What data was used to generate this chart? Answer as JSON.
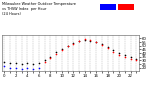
{
  "title": "Milwaukee Weather Outdoor Temperature\nvs THSW Index\nper Hour\n(24 Hours)",
  "hours": [
    0,
    1,
    2,
    3,
    4,
    5,
    6,
    7,
    8,
    9,
    10,
    11,
    12,
    13,
    14,
    15,
    16,
    17,
    18,
    19,
    20,
    21,
    22,
    23
  ],
  "temp": [
    28,
    27,
    26,
    25,
    26,
    25,
    26,
    30,
    35,
    41,
    46,
    50,
    54,
    57,
    58,
    57,
    55,
    52,
    48,
    44,
    40,
    37,
    34,
    32
  ],
  "thsw_blue": [
    22,
    20,
    19,
    18,
    19,
    18,
    19,
    null,
    null,
    null,
    null,
    null,
    null,
    null,
    null,
    null,
    null,
    null,
    null,
    null,
    null,
    null,
    null,
    null
  ],
  "thsw_red": [
    null,
    null,
    null,
    null,
    null,
    null,
    null,
    28,
    33,
    39,
    44,
    49,
    53,
    57,
    59,
    58,
    55,
    51,
    47,
    42,
    38,
    35,
    32,
    30
  ],
  "background_color": "#ffffff",
  "plot_bg": "#ffffff",
  "grid_color": "#aaaaaa",
  "temp_color": "#000000",
  "thsw_red_color": "#ff0000",
  "thsw_blue_color": "#0000ff",
  "legend_blue_color": "#0000ff",
  "legend_red_color": "#ff0000",
  "ylim": [
    15,
    65
  ],
  "yticks": [
    20,
    25,
    30,
    35,
    40,
    45,
    50,
    55,
    60
  ],
  "xlim": [
    -0.5,
    23.5
  ],
  "xtick_labels": [
    "0",
    "",
    "2",
    "",
    "4",
    "",
    "6",
    "",
    "8",
    "",
    "10",
    "",
    "12",
    "",
    "14",
    "",
    "16",
    "",
    "18",
    "",
    "20",
    "",
    "22",
    ""
  ],
  "dot_size": 1.2
}
